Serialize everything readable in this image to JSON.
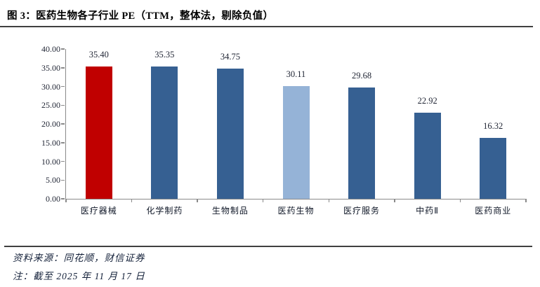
{
  "page": {
    "title": "图 3：医药生物各子行业 PE（TTM，整体法，剔除负值）",
    "source_line": "资料来源：同花顺，财信证券",
    "note_line": "注：截至 2025 年 11 月 17 日"
  },
  "colors": {
    "highlight_bar": "#c00000",
    "default_bar": "#366092",
    "light_bar": "#95b3d7",
    "axis": "#8a8a8a",
    "rule": "#404040",
    "text": "#1f2433"
  },
  "chart_data": {
    "type": "bar",
    "title": "医药生物各子行业PE（TTM，整体法，剔除负值）",
    "categories": [
      "医疗器械",
      "化学制药",
      "生物制品",
      "医药生物",
      "医疗服务",
      "中药Ⅱ",
      "医药商业"
    ],
    "values": [
      35.4,
      35.35,
      34.75,
      30.11,
      29.68,
      22.92,
      16.32
    ],
    "value_labels": [
      "35.40",
      "35.35",
      "34.75",
      "30.11",
      "29.68",
      "22.92",
      "16.32"
    ],
    "bar_colors": [
      "#c00000",
      "#366092",
      "#366092",
      "#95b3d7",
      "#366092",
      "#366092",
      "#366092"
    ],
    "xlabel": "",
    "ylabel": "",
    "ylim": [
      0,
      40
    ],
    "yticks": [
      "40.00",
      "35.00",
      "30.00",
      "25.00",
      "20.00",
      "15.00",
      "10.00",
      "5.00",
      "0.00"
    ],
    "grid": false,
    "legend": "none"
  }
}
